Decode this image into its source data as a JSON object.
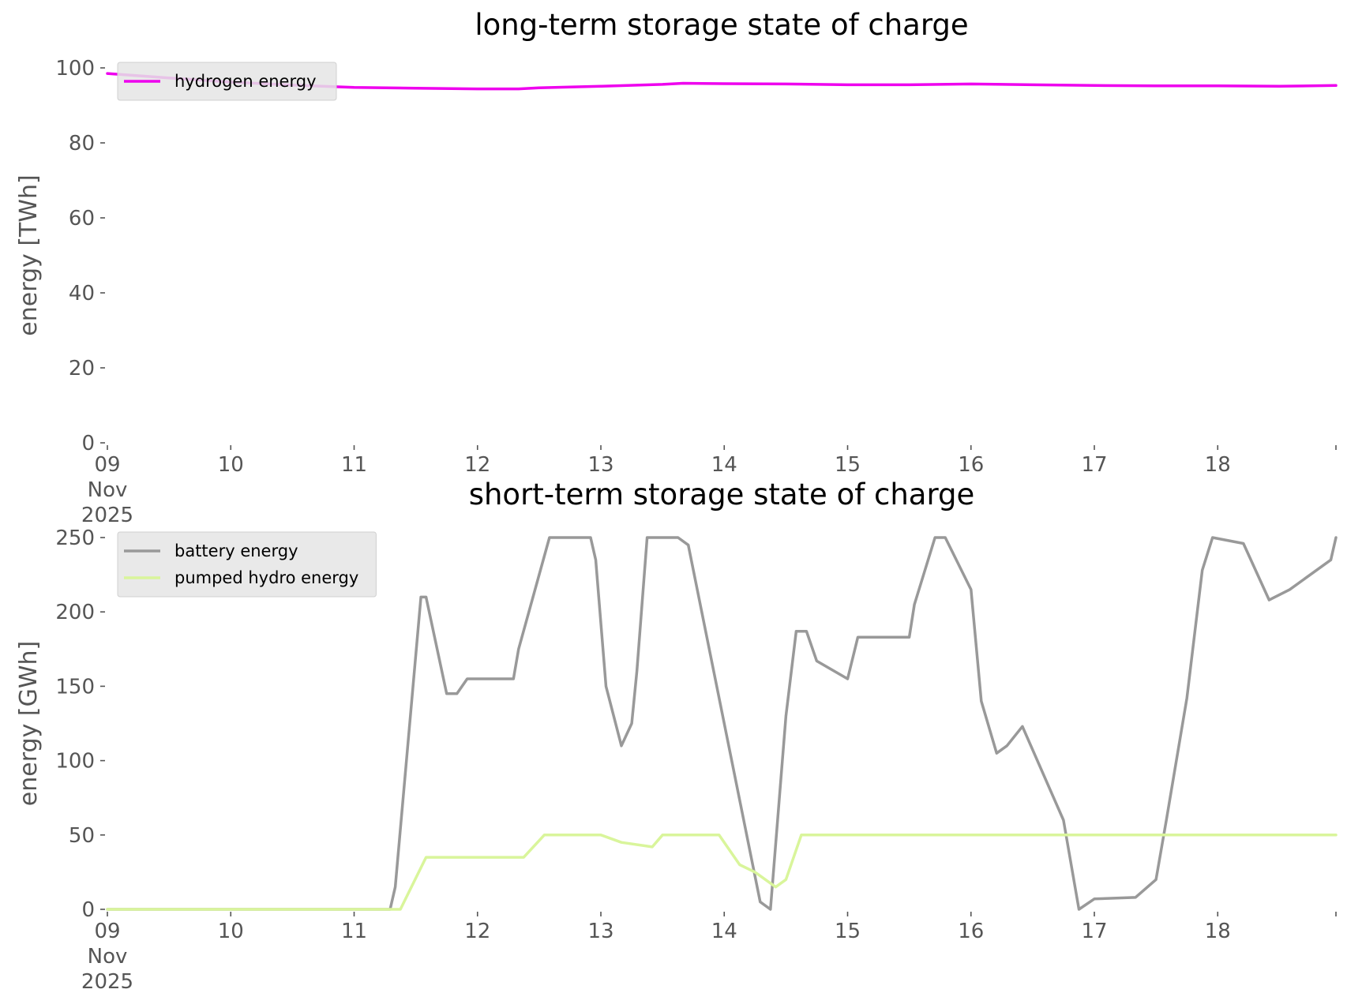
{
  "chart_data": [
    {
      "type": "line",
      "title": "long-term storage state of charge",
      "ylabel": "energy [TWh]",
      "xlabel": "",
      "ylim": [
        0,
        100
      ],
      "xlim": [
        "2025-11-09",
        "2025-11-18 23:00"
      ],
      "yticks": [
        0,
        20,
        40,
        60,
        80,
        100
      ],
      "xticks": [
        {
          "label": "09",
          "sub": [
            "Nov",
            "2025"
          ],
          "date": "2025-11-09"
        },
        {
          "label": "10",
          "sub": [],
          "date": "2025-11-10"
        },
        {
          "label": "11",
          "sub": [],
          "date": "2025-11-11"
        },
        {
          "label": "12",
          "sub": [],
          "date": "2025-11-12"
        },
        {
          "label": "13",
          "sub": [],
          "date": "2025-11-13"
        },
        {
          "label": "14",
          "sub": [],
          "date": "2025-11-14"
        },
        {
          "label": "15",
          "sub": [],
          "date": "2025-11-15"
        },
        {
          "label": "16",
          "sub": [],
          "date": "2025-11-16"
        },
        {
          "label": "17",
          "sub": [],
          "date": "2025-11-17"
        },
        {
          "label": "18",
          "sub": [],
          "date": "2025-11-18"
        }
      ],
      "grid": false,
      "legend": "top-left",
      "series": [
        {
          "name": "hydrogen energy",
          "color": "#ee00ee",
          "x": [
            "2025-11-09 00:00",
            "2025-11-09 12:00",
            "2025-11-10 00:00",
            "2025-11-10 12:00",
            "2025-11-11 00:00",
            "2025-11-11 12:00",
            "2025-11-12 00:00",
            "2025-11-12 08:00",
            "2025-11-12 12:00",
            "2025-11-13 00:00",
            "2025-11-13 12:00",
            "2025-11-13 16:00",
            "2025-11-14 00:00",
            "2025-11-14 12:00",
            "2025-11-15 00:00",
            "2025-11-15 12:00",
            "2025-11-16 00:00",
            "2025-11-16 12:00",
            "2025-11-17 00:00",
            "2025-11-17 12:00",
            "2025-11-18 00:00",
            "2025-11-18 12:00",
            "2025-11-18 23:00"
          ],
          "y": [
            98.5,
            97.3,
            96.2,
            95.4,
            94.8,
            94.6,
            94.4,
            94.4,
            94.7,
            95.1,
            95.6,
            95.9,
            95.8,
            95.7,
            95.5,
            95.5,
            95.7,
            95.5,
            95.3,
            95.2,
            95.2,
            95.1,
            95.3
          ]
        }
      ]
    },
    {
      "type": "line",
      "title": "short-term storage state of charge",
      "ylabel": "energy [GWh]",
      "xlabel": "",
      "ylim": [
        0,
        250
      ],
      "xlim": [
        "2025-11-09",
        "2025-11-18 23:00"
      ],
      "yticks": [
        0,
        50,
        100,
        150,
        200,
        250
      ],
      "xticks": [
        {
          "label": "09",
          "sub": [
            "Nov",
            "2025"
          ],
          "date": "2025-11-09"
        },
        {
          "label": "10",
          "sub": [],
          "date": "2025-11-10"
        },
        {
          "label": "11",
          "sub": [],
          "date": "2025-11-11"
        },
        {
          "label": "12",
          "sub": [],
          "date": "2025-11-12"
        },
        {
          "label": "13",
          "sub": [],
          "date": "2025-11-13"
        },
        {
          "label": "14",
          "sub": [],
          "date": "2025-11-14"
        },
        {
          "label": "15",
          "sub": [],
          "date": "2025-11-15"
        },
        {
          "label": "16",
          "sub": [],
          "date": "2025-11-16"
        },
        {
          "label": "17",
          "sub": [],
          "date": "2025-11-17"
        },
        {
          "label": "18",
          "sub": [],
          "date": "2025-11-18"
        }
      ],
      "grid": false,
      "legend": "top-left",
      "series": [
        {
          "name": "battery energy",
          "color": "#999999",
          "x": [
            "2025-11-09 00:00",
            "2025-11-11 07:00",
            "2025-11-11 08:00",
            "2025-11-11 13:00",
            "2025-11-11 14:00",
            "2025-11-11 18:00",
            "2025-11-11 20:00",
            "2025-11-11 22:00",
            "2025-11-12 00:00",
            "2025-11-12 07:00",
            "2025-11-12 08:00",
            "2025-11-12 14:00",
            "2025-11-12 22:00",
            "2025-11-12 23:00",
            "2025-11-13 01:00",
            "2025-11-13 04:00",
            "2025-11-13 06:00",
            "2025-11-13 07:00",
            "2025-11-13 09:00",
            "2025-11-13 15:00",
            "2025-11-13 17:00",
            "2025-11-14 07:00",
            "2025-11-14 09:00",
            "2025-11-14 12:00",
            "2025-11-14 14:00",
            "2025-11-14 16:00",
            "2025-11-14 18:00",
            "2025-11-15 00:00",
            "2025-11-15 02:00",
            "2025-11-15 04:00",
            "2025-11-15 12:00",
            "2025-11-15 13:00",
            "2025-11-15 17:00",
            "2025-11-15 19:00",
            "2025-11-16 00:00",
            "2025-11-16 02:00",
            "2025-11-16 05:00",
            "2025-11-16 07:00",
            "2025-11-16 10:00",
            "2025-11-16 18:00",
            "2025-11-16 21:00",
            "2025-11-17 00:00",
            "2025-11-17 08:00",
            "2025-11-17 12:00",
            "2025-11-17 14:00",
            "2025-11-17 18:00",
            "2025-11-17 21:00",
            "2025-11-17 23:00",
            "2025-11-18 05:00",
            "2025-11-18 10:00",
            "2025-11-18 14:00",
            "2025-11-18 22:00",
            "2025-11-18 23:00"
          ],
          "y": [
            0,
            0,
            15,
            210,
            210,
            145,
            145,
            155,
            155,
            155,
            175,
            250,
            250,
            235,
            150,
            110,
            125,
            160,
            250,
            250,
            245,
            5,
            0,
            130,
            187,
            187,
            167,
            155,
            183,
            183,
            183,
            205,
            250,
            250,
            215,
            140,
            105,
            110,
            123,
            60,
            0,
            7,
            8,
            20,
            60,
            142,
            228,
            250,
            246,
            208,
            215,
            235,
            250
          ]
        },
        {
          "name": "pumped hydro energy",
          "color": "#d9f59b",
          "x": [
            "2025-11-09 00:00",
            "2025-11-11 09:00",
            "2025-11-11 14:00",
            "2025-11-12 00:00",
            "2025-11-12 05:00",
            "2025-11-12 09:00",
            "2025-11-12 13:00",
            "2025-11-13 00:00",
            "2025-11-13 04:00",
            "2025-11-13 10:00",
            "2025-11-13 12:00",
            "2025-11-13 14:00",
            "2025-11-13 23:00",
            "2025-11-14 03:00",
            "2025-11-14 06:00",
            "2025-11-14 10:00",
            "2025-11-14 12:00",
            "2025-11-14 15:00",
            "2025-11-18 23:00"
          ],
          "y": [
            0,
            0,
            35,
            35,
            35,
            35,
            50,
            50,
            45,
            42,
            50,
            50,
            50,
            30,
            25,
            15,
            20,
            50,
            50
          ]
        }
      ]
    }
  ]
}
